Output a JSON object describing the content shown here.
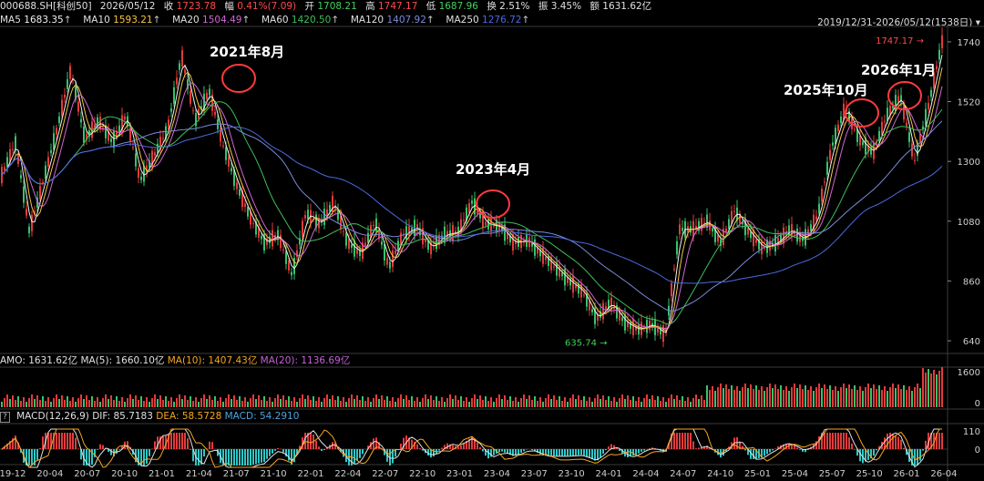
{
  "header": {
    "symbol": "000688.SH[科创50]",
    "date": "2026/05/12",
    "close_label": "收",
    "close": "1723.78",
    "change_label": "幅",
    "change": "0.41%(7.09)",
    "open_label": "开",
    "open": "1708.21",
    "high_label": "高",
    "high": "1747.17",
    "low_label": "低",
    "low": "1687.96",
    "turnover_label": "换",
    "turnover": "2.51%",
    "amplitude_label": "振",
    "amplitude": "3.45%",
    "amount_label": "额",
    "amount": "1631.62亿"
  },
  "ma_legend": [
    {
      "name": "MA5",
      "value": "1683.35",
      "color": "#f0f0f0"
    },
    {
      "name": "MA10",
      "value": "1593.21",
      "color": "#f5c542"
    },
    {
      "name": "MA20",
      "value": "1504.49",
      "color": "#d466d6"
    },
    {
      "name": "MA60",
      "value": "1420.50",
      "color": "#3fbf5a"
    },
    {
      "name": "MA120",
      "value": "1407.92",
      "color": "#7a8bd8"
    },
    {
      "name": "MA250",
      "value": "1276.72",
      "color": "#4a6ae0"
    }
  ],
  "range_text": "2019/12/31-2026/05/12(1538日)",
  "annotations": [
    "2021年8月",
    "2023年4月",
    "2025年10月",
    "2026年1月"
  ],
  "max_label": "1747.17",
  "min_label": "635.74",
  "amo": {
    "label": "AMO: 1631.62亿",
    "ma5": "MA(5): 1660.10亿",
    "ma10": "MA(10): 1407.43亿",
    "ma20": "MA(20): 1136.69亿",
    "colors": {
      "ma5": "#e0e0e0",
      "ma10": "#f5a623",
      "ma20": "#c561d6"
    }
  },
  "macd": {
    "label": "MACD(12,26,9)",
    "dif": "DIF: 85.7183",
    "dea": "DEA: 58.5728",
    "macd": "MACD: 54.2910",
    "colors": {
      "dif": "#e0e0e0",
      "dea": "#f5a623",
      "macd": "#4aa3df"
    }
  },
  "chart_data": {
    "type": "line",
    "title": "",
    "price_ticks": [
      640,
      860,
      1080,
      1300,
      1520,
      1740
    ],
    "ylim": [
      600,
      1790
    ],
    "volume_ticks": [
      0,
      1600
    ],
    "macd_ticks": [
      0,
      110
    ],
    "x_tick_labels": [
      "19-12",
      "20-04",
      "20-07",
      "20-10",
      "21-01",
      "21-04",
      "21-07",
      "21-10",
      "22-01",
      "22-04",
      "22-07",
      "22-10",
      "23-01",
      "23-04",
      "23-07",
      "23-10",
      "24-01",
      "24-04",
      "24-07",
      "24-10",
      "25-01",
      "25-04",
      "25-07",
      "25-10",
      "26-01",
      "26-04"
    ],
    "series": [
      {
        "values": [
          1250,
          1370,
          1040,
          1230,
          1420,
          1640,
          1380,
          1450,
          1370,
          1470,
          1230,
          1320,
          1420,
          1690,
          1450,
          1560,
          1360,
          1210,
          1090,
          1000,
          1030,
          880,
          1110,
          1070,
          1150,
          1000,
          960,
          1080,
          910,
          1030,
          1060,
          980,
          1030,
          1040,
          1150,
          1070,
          1060,
          1000,
          1010,
          960,
          910,
          860,
          820,
          720,
          780,
          710,
          680,
          700,
          660,
          1050,
          1050,
          1080,
          1000,
          1120,
          1040,
          980,
          1000,
          1050,
          1010,
          1100,
          1350,
          1500,
          1380,
          1330,
          1470,
          1540,
          1300,
          1500,
          1740
        ]
      }
    ],
    "y_marks": {
      "max": 1747.17,
      "min": 635.74
    }
  }
}
